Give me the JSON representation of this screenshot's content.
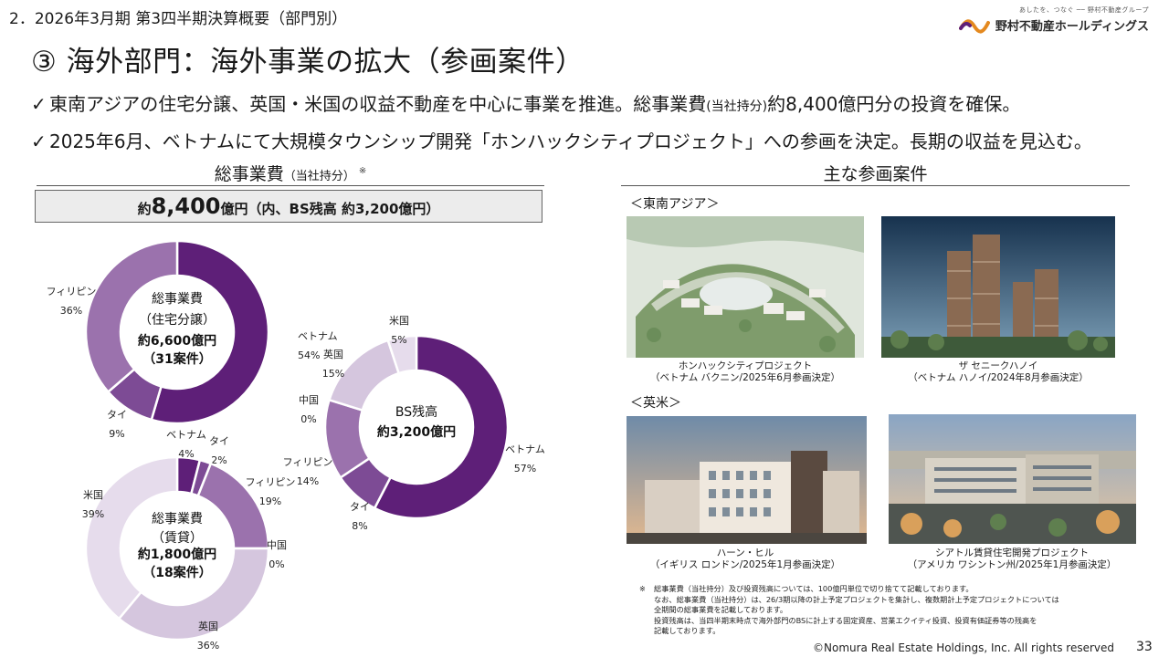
{
  "header": {
    "section": "2．2026年3月期 第3四半期決算概要（部門別）",
    "logo_tagline": "あしたを、つなぐ ── 野村不動産グループ",
    "logo_name": "野村不動産ホールディングス"
  },
  "title": "③ 海外部門：海外事業の拡大（参画案件）",
  "bullets": {
    "check": "✓",
    "b1_pre": "東南アジアの住宅分譲、英国・米国の収益不動産を中心に事業を推進。総事業費",
    "b1_small": "(当社持分)",
    "b1_post": "約8,400億円分の投資を確保。",
    "b2": "2025年6月、ベトナムにて大規模タウンシップ開発「ホンハックシティプロジェクト」への参画を決定。長期の収益を見込む。"
  },
  "left": {
    "heading_main": "総事業費",
    "heading_sub": "（当社持分）",
    "heading_note": "※",
    "total_pre": "約",
    "total_big": "8,400",
    "total_post": "億円（内、BS残高 約3,200億円）"
  },
  "right": {
    "heading": "主な参画案件",
    "region_sea": "＜東南アジア＞",
    "region_uk": "＜英米＞",
    "projects": [
      {
        "name": "ホンハックシティプロジェクト",
        "detail": "（ベトナム バクニン/2025年6月参画決定）"
      },
      {
        "name": "ザ セニークハノイ",
        "detail": "（ベトナム ハノイ/2024年8月参画決定）"
      },
      {
        "name": "ハーン・ヒル",
        "detail": "（イギリス ロンドン/2025年1月参画決定）"
      },
      {
        "name": "シアトル賃貸住宅開発プロジェクト",
        "detail": "（アメリカ ワシントン州/2025年1月参画決定）"
      }
    ]
  },
  "footnote": {
    "mark": "※",
    "lines": [
      "総事業費（当社持分）及び投資残高については、100億円単位で切り捨てて記載しております。",
      "なお、総事業費（当社持分）は、26/3期以降の計上予定プロジェクトを集計し、複数期計上予定プロジェクトについては",
      "全期間の総事業費を記載しております。",
      "投資残高は、当四半期末時点で海外部門のBSに計上する固定資産、営業エクイティ投資、投資有価証券等の残高を",
      "記載しております。"
    ]
  },
  "copyright": "©Nomura Real Estate Holdings, Inc. All rights reserved",
  "page_number": "33",
  "colors": {
    "dark_purple": "#5e1f78",
    "mid_purple": "#7d4b95",
    "light_purple": "#9b72ad",
    "pale_purple": "#d5c6de",
    "very_pale_purple": "#e6dcec"
  },
  "chart_data": [
    {
      "type": "pie",
      "donut": true,
      "center_lines": [
        "総事業費",
        "（住宅分譲）",
        "約6,600億円",
        "（31案件）"
      ],
      "slices": [
        {
          "label": "ベトナム",
          "value": 54,
          "display": "54%"
        },
        {
          "label": "タイ",
          "value": 9,
          "display": "9%"
        },
        {
          "label": "フィリピン",
          "value": 36,
          "display": "36%"
        }
      ]
    },
    {
      "type": "pie",
      "donut": true,
      "center_lines": [
        "BS残高",
        "約3,200億円"
      ],
      "slices": [
        {
          "label": "ベトナム",
          "value": 57,
          "display": "57%"
        },
        {
          "label": "タイ",
          "value": 8,
          "display": "8%"
        },
        {
          "label": "フィリピン",
          "value": 14,
          "display": "14%"
        },
        {
          "label": "中国",
          "value": 0,
          "display": "0%"
        },
        {
          "label": "英国",
          "value": 15,
          "display": "15%"
        },
        {
          "label": "米国",
          "value": 5,
          "display": "5%"
        }
      ]
    },
    {
      "type": "pie",
      "donut": true,
      "center_lines": [
        "総事業費",
        "（賃貸）",
        "約1,800億円",
        "（18案件）"
      ],
      "slices": [
        {
          "label": "ベトナム",
          "value": 4,
          "display": "4%"
        },
        {
          "label": "タイ",
          "value": 2,
          "display": "2%"
        },
        {
          "label": "フィリピン",
          "value": 19,
          "display": "19%"
        },
        {
          "label": "中国",
          "value": 0,
          "display": "0%"
        },
        {
          "label": "英国",
          "value": 36,
          "display": "36%"
        },
        {
          "label": "米国",
          "value": 39,
          "display": "39%"
        }
      ]
    }
  ]
}
